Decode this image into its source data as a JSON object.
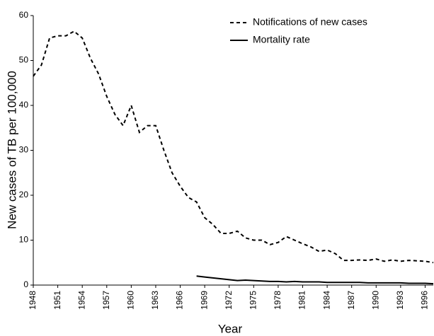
{
  "chart_data": {
    "type": "line",
    "x_label": "Year",
    "y_label": "New cases of TB per 100,000",
    "x": [
      1948,
      1949,
      1950,
      1951,
      1952,
      1953,
      1954,
      1955,
      1956,
      1957,
      1958,
      1959,
      1960,
      1961,
      1962,
      1963,
      1964,
      1965,
      1966,
      1967,
      1968,
      1969,
      1970,
      1971,
      1972,
      1973,
      1974,
      1975,
      1976,
      1977,
      1978,
      1979,
      1980,
      1981,
      1982,
      1983,
      1984,
      1985,
      1986,
      1987,
      1988,
      1989,
      1990,
      1991,
      1992,
      1993,
      1994,
      1995,
      1996,
      1997
    ],
    "series": [
      {
        "name": "Notifications of new cases",
        "color": "#000000",
        "line_style": "dashed",
        "values": [
          46.5,
          49,
          55,
          55.5,
          55.5,
          56.5,
          55,
          50.5,
          47,
          42,
          38,
          35.5,
          40,
          34,
          35.5,
          35.5,
          30,
          25,
          22,
          19.5,
          18.5,
          15,
          13.5,
          11.5,
          11.5,
          12,
          10.5,
          10,
          10,
          9,
          9.5,
          10.8,
          10,
          9.2,
          8.5,
          7.5,
          7.8,
          7,
          5.5,
          5.5,
          5.6,
          5.5,
          5.8,
          5.3,
          5.6,
          5.3,
          5.5,
          5.4,
          5.3,
          5
        ]
      },
      {
        "name": "Mortality rate",
        "color": "#000000",
        "line_style": "solid",
        "values": [
          null,
          null,
          null,
          null,
          null,
          null,
          null,
          null,
          null,
          null,
          null,
          null,
          null,
          null,
          null,
          null,
          null,
          null,
          null,
          null,
          2.0,
          1.8,
          1.6,
          1.4,
          1.2,
          1.0,
          1.1,
          1.0,
          0.9,
          0.8,
          0.8,
          0.7,
          0.8,
          0.7,
          0.7,
          0.7,
          0.6,
          0.6,
          0.6,
          0.6,
          0.6,
          0.5,
          0.5,
          0.5,
          0.5,
          0.5,
          0.4,
          0.4,
          0.4,
          0.3
        ]
      }
    ],
    "xlim": [
      1948,
      1997
    ],
    "xticks": [
      1948,
      1951,
      1954,
      1957,
      1960,
      1963,
      1966,
      1969,
      1972,
      1975,
      1978,
      1981,
      1984,
      1987,
      1990,
      1993,
      1996
    ],
    "ylim": [
      0,
      60
    ],
    "yticks": [
      0,
      10,
      20,
      30,
      40,
      50,
      60
    ],
    "grid": false,
    "legend": "upper right"
  }
}
